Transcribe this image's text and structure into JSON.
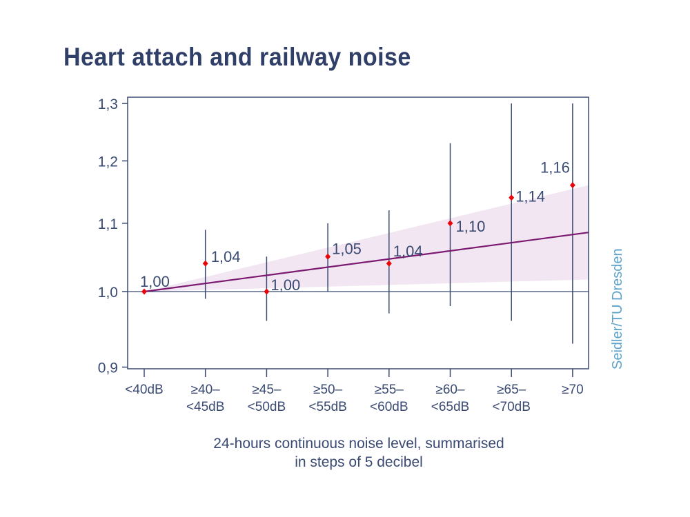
{
  "chart_data": {
    "type": "scatter",
    "title": "Heart attach and railway noise",
    "xlabel": "24-hours continuous noise level, summarised\nin steps of 5 decibel",
    "xlabel_lines": [
      "24-hours continuous noise level, summarised",
      "in steps of 5 decibel"
    ],
    "ylabel": "",
    "y_scale": "log",
    "ylim": [
      0.9,
      1.3
    ],
    "y_ticks": [
      0.9,
      1.0,
      1.1,
      1.2,
      1.3
    ],
    "y_tick_labels": [
      "0,9",
      "1,0",
      "1,1",
      "1,2",
      "1,3"
    ],
    "categories": [
      [
        "<40dB"
      ],
      [
        "≥40–",
        "<45dB"
      ],
      [
        "≥45–",
        "<50dB"
      ],
      [
        "≥50–",
        "<55dB"
      ],
      [
        "≥55–",
        "<60dB"
      ],
      [
        "≥60–",
        "<65dB"
      ],
      [
        "≥65–",
        "<70dB"
      ],
      [
        "≥70"
      ]
    ],
    "values": [
      1.0,
      1.04,
      1.0,
      1.05,
      1.04,
      1.1,
      1.14,
      1.16
    ],
    "value_labels": [
      "1,00",
      "1,04",
      "1,00",
      "1,05",
      "1,04",
      "1,10",
      "1,14",
      "1,16"
    ],
    "ci_lower": [
      null,
      0.99,
      0.96,
      1.0,
      0.97,
      0.98,
      0.96,
      0.93
    ],
    "ci_upper": [
      null,
      1.09,
      1.05,
      1.1,
      1.12,
      1.23,
      1.3,
      1.3
    ],
    "reference_line": 1.0,
    "trend": {
      "start": 1.0,
      "end": 1.086,
      "band_upper_end": 1.16,
      "band_lower_end": 1.017
    },
    "grid": false,
    "source_credit": "Seidler/TU Dresden",
    "colors": {
      "axis": "#3a4a72",
      "point": "#e8060b",
      "trend": "#7b1870",
      "band": "#f1e6f1",
      "credit": "#5ba3cc",
      "title": "#2f3f68"
    }
  }
}
